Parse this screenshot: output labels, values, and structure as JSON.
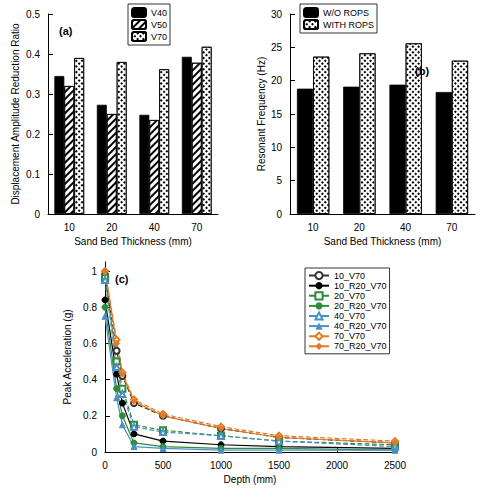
{
  "chart_data": [
    {
      "type": "bar",
      "title": "(a)",
      "x_label": "Sand Bed Thickness (mm)",
      "y_label": "Displacement Amplitude Reduction Ratio",
      "categories": [
        "10",
        "20",
        "40",
        "70"
      ],
      "series": [
        {
          "name": "V40",
          "color": "#000000",
          "values": [
            0.345,
            0.273,
            0.248,
            0.393
          ]
        },
        {
          "name": "V50",
          "color": "#ffffff",
          "values": [
            0.32,
            0.25,
            0.235,
            0.378
          ]
        },
        {
          "name": "V70",
          "color": "#ffffff",
          "values": [
            0.39,
            0.38,
            0.362,
            0.418
          ]
        }
      ],
      "ylim": [
        0,
        0.5
      ],
      "yticks": [
        0,
        0.1,
        0.2,
        0.3,
        0.4,
        0.5
      ],
      "grid": false,
      "legend": "upper right"
    },
    {
      "type": "bar",
      "title": "(b)",
      "x_label": "Sand Bed Thickness (mm)",
      "y_label": "Resonant Frequency (Hz)",
      "categories": [
        "10",
        "20",
        "40",
        "70"
      ],
      "series": [
        {
          "name": "W/O ROPS",
          "color": "#000000",
          "values": [
            18.8,
            19.1,
            19.4,
            18.3
          ]
        },
        {
          "name": "WITH ROPS",
          "color": "#ffffff",
          "values": [
            23.6,
            24.1,
            25.6,
            23.0
          ]
        }
      ],
      "ylim": [
        0,
        30
      ],
      "yticks": [
        0,
        5,
        10,
        15,
        20,
        25,
        30
      ],
      "grid": false,
      "legend": "upper right"
    },
    {
      "type": "line",
      "title": "(c)",
      "x_label": "Depth (mm)",
      "y_label": "Peak Acceleration (g)",
      "x": [
        0,
        100,
        150,
        250,
        500,
        1000,
        1500,
        2500
      ],
      "series": [
        {
          "name": "10_V70",
          "color": "#333333",
          "marker": "emptyCircle",
          "line_style": "dashed",
          "values": [
            0.98,
            0.56,
            0.42,
            0.27,
            0.2,
            0.13,
            0.08,
            0.05
          ]
        },
        {
          "name": "10_R20_V70",
          "color": "#000000",
          "marker": "circle",
          "line_style": "solid",
          "values": [
            0.84,
            0.43,
            0.27,
            0.1,
            0.06,
            0.04,
            0.03,
            0.02
          ]
        },
        {
          "name": "20_V70",
          "color": "#2e8b3a",
          "marker": "emptyRect",
          "line_style": "dashed",
          "values": [
            0.96,
            0.5,
            0.35,
            0.15,
            0.12,
            0.09,
            0.06,
            0.04
          ]
        },
        {
          "name": "20_R20_V70",
          "color": "#2e8b3a",
          "marker": "circle",
          "line_style": "solid",
          "values": [
            0.8,
            0.35,
            0.2,
            0.05,
            0.03,
            0.02,
            0.02,
            0.01
          ]
        },
        {
          "name": "40_V70",
          "color": "#4a90c8",
          "marker": "emptyTriangle",
          "line_style": "dashed",
          "values": [
            0.95,
            0.47,
            0.32,
            0.14,
            0.11,
            0.09,
            0.06,
            0.03
          ]
        },
        {
          "name": "40_R20_V70",
          "color": "#4a90c8",
          "marker": "triangle",
          "line_style": "solid",
          "values": [
            0.75,
            0.3,
            0.15,
            0.03,
            0.02,
            0.01,
            0.01,
            0.01
          ]
        },
        {
          "name": "70_V70",
          "color": "#e07b27",
          "marker": "emptyDiamond",
          "line_style": "dashed",
          "values": [
            1.0,
            0.62,
            0.44,
            0.29,
            0.21,
            0.14,
            0.09,
            0.06
          ]
        },
        {
          "name": "70_R20_V70",
          "color": "#e07b27",
          "marker": "diamond",
          "line_style": "solid",
          "values": [
            1.0,
            0.6,
            0.43,
            0.28,
            0.2,
            0.13,
            0.08,
            0.05
          ]
        }
      ],
      "xlim": [
        0,
        2500
      ],
      "xticks": [
        0,
        500,
        1000,
        1500,
        2000,
        2500
      ],
      "ylim": [
        0,
        1.05
      ],
      "yticks": [
        0,
        0.2,
        0.4,
        0.6,
        0.8,
        1
      ],
      "grid": false,
      "legend": "upper right"
    }
  ]
}
